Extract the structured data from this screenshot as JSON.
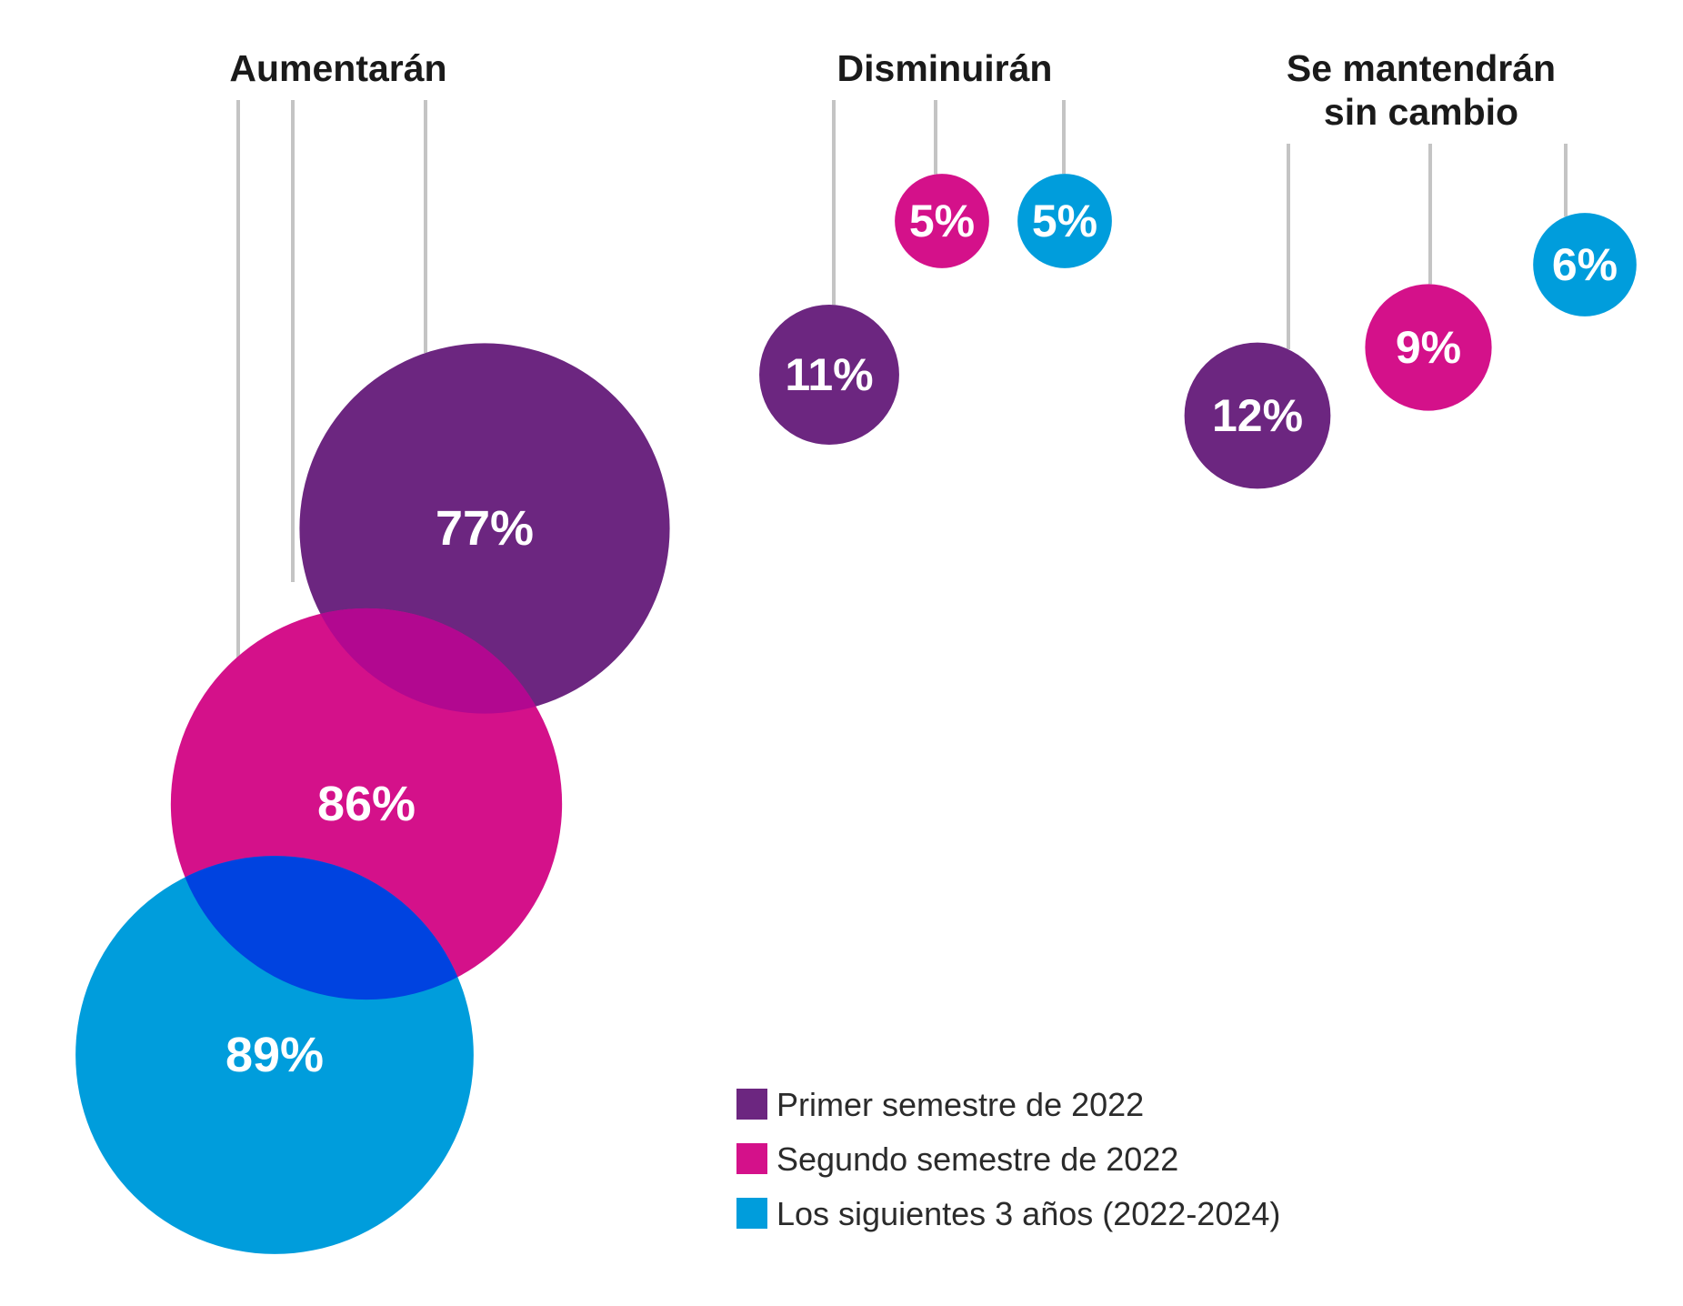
{
  "chart_data": {
    "type": "bubble",
    "groups": [
      {
        "title": [
          "Aumentarán"
        ],
        "values": [
          {
            "series": "Primer semestre de 2022",
            "value": 77,
            "label": "77%"
          },
          {
            "series": "Segundo semestre de 2022",
            "value": 86,
            "label": "86%"
          },
          {
            "series": "Los siguientes 3 años (2022-2024)",
            "value": 89,
            "label": "89%"
          }
        ]
      },
      {
        "title": [
          "Disminuirán"
        ],
        "values": [
          {
            "series": "Primer semestre de 2022",
            "value": 11,
            "label": "11%"
          },
          {
            "series": "Segundo semestre de 2022",
            "value": 5,
            "label": "5%"
          },
          {
            "series": "Los siguientes 3 años (2022-2024)",
            "value": 5,
            "label": "5%"
          }
        ]
      },
      {
        "title": [
          "Se mantendrán",
          "sin cambio"
        ],
        "values": [
          {
            "series": "Primer semestre de 2022",
            "value": 12,
            "label": "12%"
          },
          {
            "series": "Segundo semestre de 2022",
            "value": 9,
            "label": "9%"
          },
          {
            "series": "Los siguientes 3 años (2022-2024)",
            "value": 6,
            "label": "6%"
          }
        ]
      }
    ],
    "series": [
      {
        "name": "Primer semestre de 2022",
        "color": "#6c2680"
      },
      {
        "name": "Segundo semestre de 2022",
        "color": "#d4118a"
      },
      {
        "name": "Los siguientes 3 años (2022-2024)",
        "color": "#009ddc"
      }
    ],
    "overlap_colors": {
      "Primer semestre de 2022+Segundo semestre de 2022": "#b20890",
      "Segundo semestre de 2022+Los siguientes 3 años (2022-2024)": "#0043e0"
    },
    "legend_position": "bottom-right"
  }
}
